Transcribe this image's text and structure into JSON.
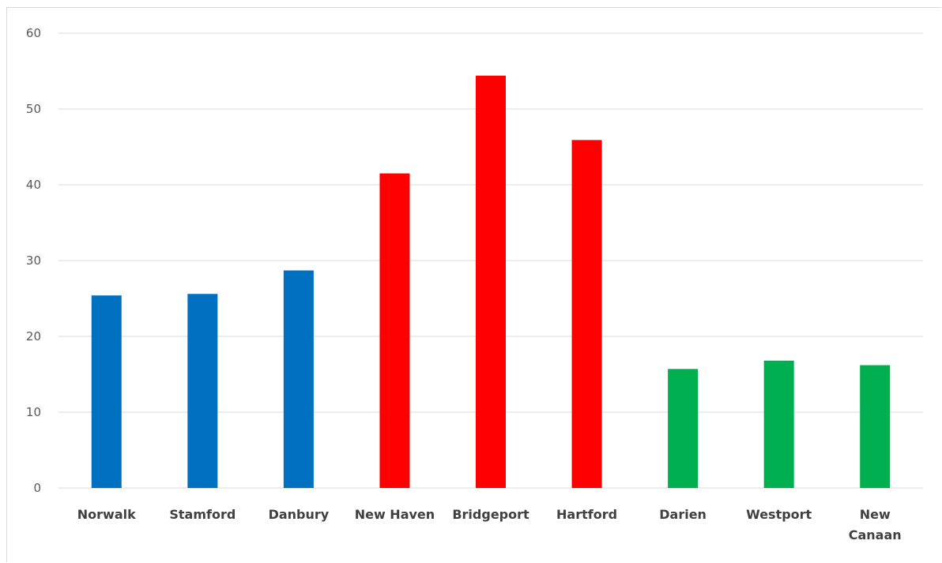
{
  "chart_data": {
    "type": "bar",
    "categories": [
      "Norwalk",
      "Stamford",
      "Danbury",
      "New Haven",
      "Bridgeport",
      "Hartford",
      "Darien",
      "Westport",
      "New Canaan"
    ],
    "category_label_lines": [
      [
        "Norwalk"
      ],
      [
        "Stamford"
      ],
      [
        "Danbury"
      ],
      [
        "New Haven"
      ],
      [
        "Bridgeport"
      ],
      [
        "Hartford"
      ],
      [
        "Darien"
      ],
      [
        "Westport"
      ],
      [
        "New",
        "Canaan"
      ]
    ],
    "values": [
      25.4,
      25.6,
      28.7,
      41.5,
      54.4,
      45.9,
      15.7,
      16.8,
      16.2
    ],
    "bar_colors": [
      "#0070c0",
      "#0070c0",
      "#0070c0",
      "#ff0000",
      "#ff0000",
      "#ff0000",
      "#00b050",
      "#00b050",
      "#00b050"
    ],
    "title": "",
    "xlabel": "",
    "ylabel": "",
    "ylim": [
      0,
      60
    ],
    "yticks": [
      0,
      10,
      20,
      30,
      40,
      50,
      60
    ],
    "grid": true,
    "legend": "none"
  }
}
